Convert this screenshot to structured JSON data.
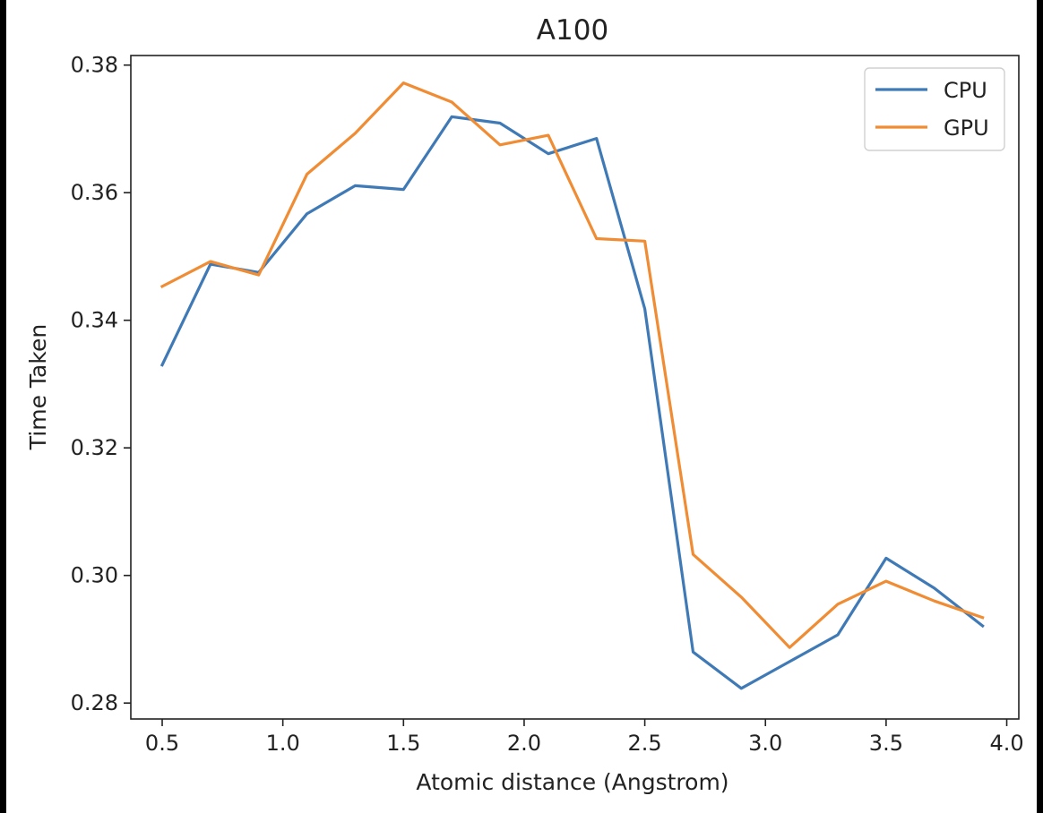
{
  "chart_data": {
    "type": "line",
    "title": "A100",
    "xlabel": "Atomic distance (Angstrom)",
    "ylabel": "Time Taken",
    "xlim": [
      0.37,
      4.05
    ],
    "ylim": [
      0.2775,
      0.3815
    ],
    "xticks": [
      0.5,
      1.0,
      1.5,
      2.0,
      2.5,
      3.0,
      3.5,
      4.0
    ],
    "xtick_labels": [
      "0.5",
      "1.0",
      "1.5",
      "2.0",
      "2.5",
      "3.0",
      "3.5",
      "4.0"
    ],
    "yticks": [
      0.28,
      0.3,
      0.32,
      0.34,
      0.36,
      0.38
    ],
    "ytick_labels": [
      "0.28",
      "0.30",
      "0.32",
      "0.34",
      "0.36",
      "0.38"
    ],
    "grid": false,
    "legend_position": "top-right",
    "x": [
      0.5,
      0.7,
      0.9,
      1.1,
      1.3,
      1.5,
      1.7,
      1.9,
      2.1,
      2.3,
      2.5,
      2.7,
      2.9,
      3.1,
      3.3,
      3.5,
      3.7,
      3.9
    ],
    "series": [
      {
        "name": "CPU",
        "color": "#3f7ab6",
        "values": [
          0.333,
          0.3488,
          0.3475,
          0.3567,
          0.3611,
          0.3605,
          0.3719,
          0.3709,
          0.3661,
          0.3685,
          0.3418,
          0.288,
          0.2823,
          0.2865,
          0.2907,
          0.3027,
          0.298,
          0.2921
        ]
      },
      {
        "name": "GPU",
        "color": "#f08c34",
        "values": [
          0.3453,
          0.3492,
          0.3471,
          0.3629,
          0.3693,
          0.3772,
          0.3742,
          0.3675,
          0.369,
          0.3528,
          0.3524,
          0.3033,
          0.2966,
          0.2887,
          0.2955,
          0.2991,
          0.296,
          0.2934
        ]
      }
    ]
  }
}
